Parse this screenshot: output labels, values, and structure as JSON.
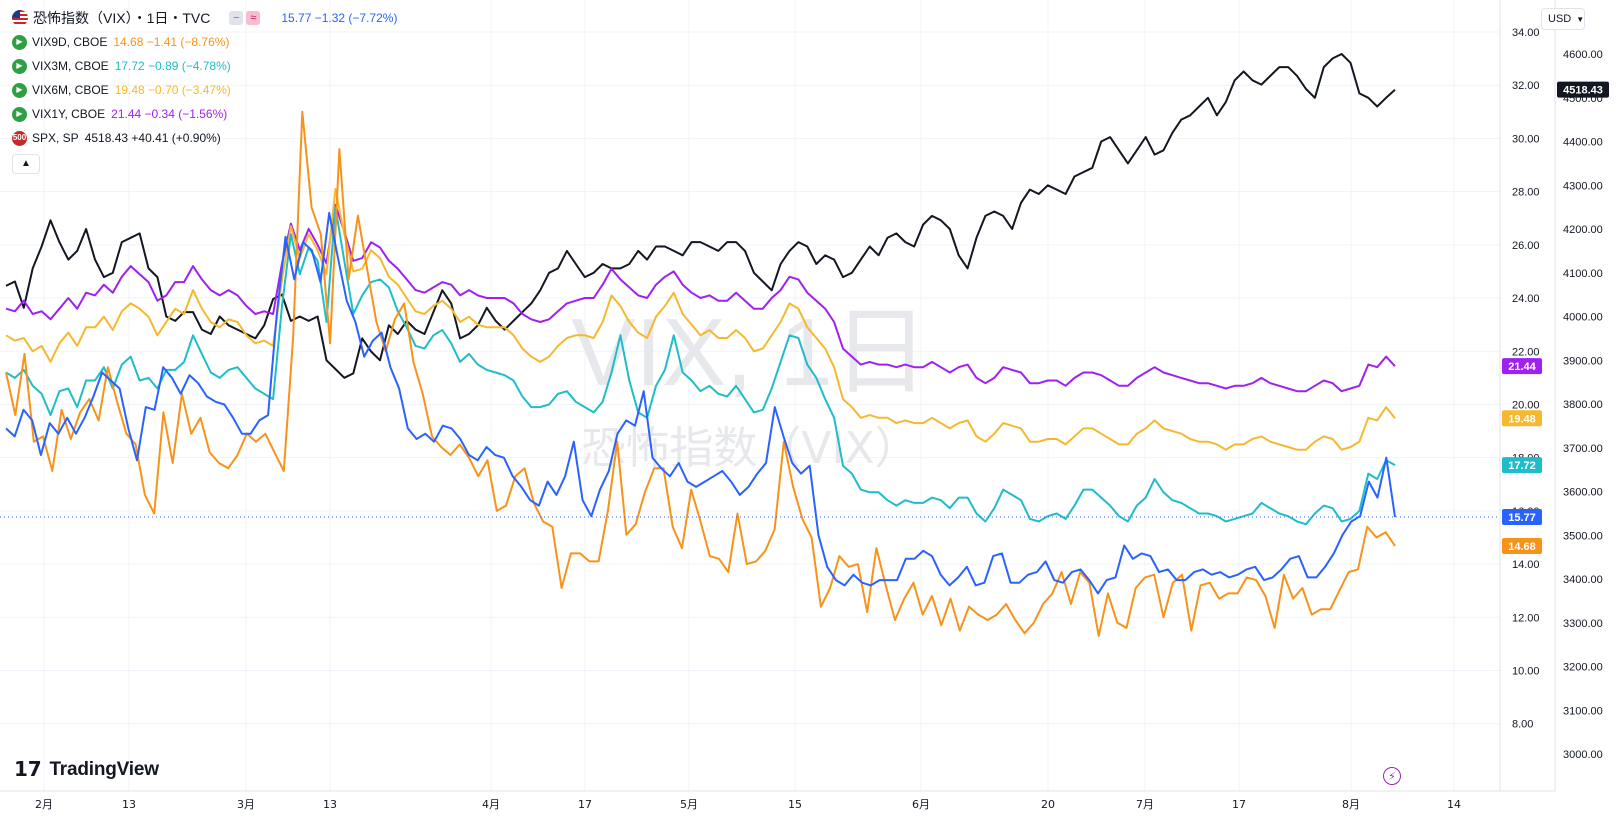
{
  "header": {
    "symbol_title": "恐怖指数（VIX）・1日・TVC",
    "vix_values": "15.77  −1.32 (−7.72%)",
    "vix_value_color": "#2962ff"
  },
  "legend": [
    {
      "name": "VIX9D, CBOE",
      "values": "14.68  −1.41 (−8.76%)",
      "color": "#f7931a",
      "icon_bg": "#2ea043",
      "icon": "play-icon"
    },
    {
      "name": "VIX3M, CBOE",
      "values": "17.72  −0.89 (−4.78%)",
      "color": "#1fbcc9",
      "icon_bg": "#2ea043",
      "icon": "play-icon"
    },
    {
      "name": "VIX6M, CBOE",
      "values": "19.48  −0.70 (−3.47%)",
      "color": "#f5b82e",
      "icon_bg": "#2ea043",
      "icon": "play-icon"
    },
    {
      "name": "VIX1Y, CBOE",
      "values": "21.44  −0.34 (−1.56%)",
      "color": "#a020f0",
      "icon_bg": "#2ea043",
      "icon": "play-icon"
    },
    {
      "name": "SPX, SP",
      "values": "4518.43  +40.41 (+0.90%)",
      "color": "#131722",
      "icon_bg": "#c62828",
      "icon_text": "500"
    }
  ],
  "currency": "USD",
  "watermark": {
    "line1": "VIX, 1日",
    "line2": "恐怖指数（VIX）"
  },
  "brand": "TradingView",
  "chart_data": {
    "type": "line",
    "x_tick_labels": [
      "2月",
      "13",
      "3月",
      "13",
      "4月",
      "17",
      "5月",
      "15",
      "6月",
      "20",
      "7月",
      "17",
      "8月",
      "14"
    ],
    "y_left": {
      "ticks": [
        "8.00",
        "10.00",
        "12.00",
        "14.00",
        "16.00",
        "18.00",
        "20.00",
        "22.00",
        "24.00",
        "26.00",
        "28.00",
        "30.00",
        "32.00",
        "34.00"
      ],
      "range": [
        6.5,
        34.5
      ]
    },
    "y_right": {
      "ticks": [
        "3000.00",
        "3100.00",
        "3200.00",
        "3300.00",
        "3400.00",
        "3500.00",
        "3600.00",
        "3700.00",
        "3800.00",
        "3900.00",
        "4000.00",
        "4100.00",
        "4200.00",
        "4300.00",
        "4400.00",
        "4500.00",
        "4600.00"
      ]
    },
    "price_labels": [
      {
        "text": "4518.43",
        "value": 4518.43,
        "axis": "right",
        "bg": "#131722"
      },
      {
        "text": "21.44",
        "value": 21.44,
        "axis": "left",
        "bg": "#a020f0"
      },
      {
        "text": "19.48",
        "value": 19.48,
        "axis": "left",
        "bg": "#f5b82e"
      },
      {
        "text": "17.72",
        "value": 17.72,
        "axis": "left",
        "bg": "#1fbcc9"
      },
      {
        "text": "15.77",
        "value": 15.77,
        "axis": "left",
        "bg": "#2962ff"
      },
      {
        "text": "14.68",
        "value": 14.68,
        "axis": "left",
        "bg": "#f7931a"
      }
    ],
    "series": [
      {
        "name": "VIX",
        "color": "#2962ff",
        "axis": "left",
        "values": [
          19.1,
          18.8,
          19.8,
          19.4,
          18.1,
          19.3,
          18.9,
          19.5,
          18.9,
          19.5,
          20.3,
          21.2,
          20.9,
          20.6,
          19.1,
          17.9,
          19.9,
          19.8,
          21.4,
          21.0,
          20.4,
          21.1,
          20.8,
          20.3,
          20.1,
          20.0,
          19.5,
          18.9,
          18.9,
          19.4,
          19.6,
          23.4,
          26.3,
          24.7,
          26.1,
          25.8,
          24.6,
          27.2,
          25.5,
          23.9,
          23.1,
          21.8,
          22.4,
          22.7,
          21.4,
          20.6,
          19.1,
          18.7,
          18.9,
          18.6,
          19.2,
          19.1,
          18.7,
          18.1,
          17.9,
          18.4,
          18.1,
          18.0,
          17.3,
          16.9,
          16.4,
          16.2,
          17.1,
          16.6,
          17.3,
          18.6,
          16.4,
          15.8,
          16.8,
          17.5,
          18.9,
          19.4,
          19.2,
          20.5,
          18.0,
          17.6,
          17.3,
          17.8,
          17.1,
          16.9,
          17.1,
          17.3,
          17.5,
          17.1,
          16.6,
          16.9,
          17.4,
          17.8,
          19.9,
          18.8,
          17.8,
          17.4,
          17.7,
          15.1,
          13.9,
          13.4,
          13.2,
          13.6,
          13.3,
          13.2,
          13.4,
          13.4,
          13.4,
          14.2,
          14.2,
          14.5,
          14.3,
          13.6,
          13.2,
          13.5,
          13.9,
          13.2,
          13.3,
          14.3,
          14.4,
          13.3,
          13.3,
          13.6,
          13.7,
          14.1,
          13.4,
          13.3,
          13.7,
          13.8,
          13.4,
          12.9,
          13.4,
          13.5,
          14.7,
          14.2,
          14.4,
          14.3,
          13.7,
          13.8,
          13.4,
          13.4,
          13.7,
          13.8,
          13.6,
          13.7,
          13.5,
          13.6,
          13.8,
          13.9,
          13.4,
          13.5,
          13.8,
          14.2,
          14.3,
          13.5,
          13.5,
          13.9,
          14.4,
          15.1,
          15.6,
          15.8,
          17.1,
          16.5,
          18.0,
          15.77
        ]
      }
    ],
    "series_compact": {
      "VIX9D": {
        "color": "#f7931a",
        "values": [
          21.2,
          19.6,
          21.9,
          18.6,
          18.8,
          17.5,
          19.8,
          18.7,
          19.7,
          20.2,
          19.4,
          21.4,
          20.1,
          18.9,
          18.5,
          16.6,
          15.9,
          19.7,
          17.8,
          20.4,
          18.9,
          19.5,
          18.2,
          17.8,
          17.6,
          18.1,
          18.9,
          18.6,
          18.9,
          18.2,
          17.5,
          22.5,
          31.0,
          27.4,
          26.4,
          22.3,
          29.6,
          24.7,
          27.1,
          25.1,
          23.1,
          22.0,
          23.2,
          23.8,
          21.6,
          20.4,
          18.8,
          18.4,
          18.1,
          18.5,
          18.0,
          17.3,
          17.9,
          16.0,
          16.2,
          17.3,
          17.6,
          16.3,
          15.6,
          15.4,
          13.1,
          14.4,
          14.4,
          14.1,
          14.1,
          16.0,
          18.6,
          15.1,
          15.5,
          16.7,
          17.6,
          17.6,
          15.4,
          14.6,
          16.8,
          15.6,
          14.3,
          14.2,
          13.7,
          15.9,
          14.0,
          14.1,
          14.5,
          15.3,
          18.6,
          16.9,
          15.7,
          15.0,
          12.4,
          13.1,
          14.3,
          13.9,
          14.0,
          12.2,
          14.6,
          13.2,
          11.9,
          12.7,
          13.3,
          12.1,
          12.8,
          11.7,
          12.7,
          11.5,
          12.4,
          12.1,
          11.9,
          12.1,
          12.5,
          11.9,
          11.4,
          11.8,
          12.5,
          12.9,
          13.7,
          12.5,
          13.7,
          13.3,
          11.3,
          12.9,
          11.8,
          11.6,
          13.1,
          13.5,
          13.6,
          12.0,
          13.3,
          13.6,
          11.5,
          13.2,
          13.3,
          12.7,
          12.9,
          12.9,
          13.5,
          13.4,
          12.8,
          11.6,
          13.6,
          12.7,
          13.1,
          12.1,
          12.3,
          12.3,
          13.0,
          13.7,
          13.8,
          15.4,
          15.0,
          15.2,
          14.68
        ]
      },
      "VIX3M": {
        "color": "#1fbcc9",
        "values": [
          21.2,
          21.0,
          21.3,
          20.7,
          20.4,
          19.6,
          20.5,
          20.6,
          19.9,
          20.9,
          20.9,
          21.4,
          20.6,
          21.5,
          21.8,
          20.9,
          21.0,
          20.6,
          21.3,
          21.3,
          21.6,
          22.6,
          21.9,
          21.2,
          21.0,
          21.3,
          21.4,
          21.0,
          20.6,
          20.4,
          20.2,
          23.7,
          26.4,
          24.9,
          25.9,
          25.4,
          23.1,
          27.4,
          25.4,
          23.4,
          24.1,
          24.6,
          24.7,
          24.4,
          23.5,
          22.9,
          22.2,
          22.1,
          22.6,
          22.8,
          22.3,
          21.6,
          21.9,
          21.5,
          21.3,
          21.2,
          21.1,
          20.9,
          20.3,
          19.9,
          19.9,
          20.0,
          20.4,
          20.5,
          20.1,
          19.9,
          19.7,
          20.1,
          21.2,
          22.6,
          20.9,
          19.7,
          19.5,
          20.7,
          21.3,
          22.6,
          21.2,
          20.9,
          20.5,
          20.7,
          20.4,
          20.3,
          20.7,
          20.2,
          19.7,
          19.8,
          20.6,
          21.6,
          22.6,
          22.5,
          21.5,
          21.0,
          20.2,
          19.5,
          17.7,
          17.4,
          16.8,
          16.7,
          16.7,
          16.4,
          16.2,
          16.4,
          16.3,
          16.3,
          16.5,
          16.4,
          16.1,
          16.5,
          16.5,
          15.9,
          15.6,
          16.1,
          16.8,
          16.6,
          16.4,
          15.7,
          15.6,
          15.8,
          15.9,
          15.7,
          16.2,
          16.8,
          16.8,
          16.5,
          16.2,
          15.8,
          15.6,
          16.2,
          16.5,
          17.2,
          16.7,
          16.4,
          16.3,
          16.1,
          15.9,
          15.9,
          15.8,
          15.6,
          15.7,
          15.8,
          15.9,
          16.3,
          16.1,
          15.9,
          15.8,
          15.6,
          15.5,
          15.9,
          16.2,
          16.1,
          15.6,
          15.7,
          16.0,
          17.4,
          17.2,
          17.9,
          17.72
        ]
      },
      "VIX6M": {
        "color": "#f5b82e",
        "values": [
          22.6,
          22.4,
          22.5,
          22.0,
          22.2,
          21.6,
          22.3,
          22.7,
          22.2,
          22.9,
          22.9,
          23.3,
          22.8,
          23.5,
          23.8,
          23.6,
          23.3,
          22.6,
          23.1,
          23.6,
          23.4,
          24.3,
          23.6,
          23.1,
          22.9,
          23.2,
          23.1,
          22.6,
          22.3,
          22.4,
          22.2,
          24.7,
          26.7,
          25.5,
          26.4,
          25.8,
          24.9,
          28.1,
          26.4,
          25.0,
          25.1,
          25.8,
          25.5,
          24.8,
          24.5,
          24.0,
          23.5,
          23.4,
          23.7,
          23.9,
          23.6,
          23.1,
          23.3,
          23.0,
          22.9,
          22.9,
          22.9,
          22.6,
          22.1,
          21.8,
          21.6,
          21.8,
          22.2,
          22.5,
          22.6,
          22.6,
          22.5,
          23.1,
          24.1,
          23.7,
          23.1,
          22.7,
          22.5,
          23.3,
          23.7,
          24.2,
          23.4,
          23.0,
          22.6,
          22.8,
          22.5,
          22.5,
          22.8,
          22.5,
          22.0,
          22.1,
          22.6,
          23.1,
          23.8,
          23.6,
          22.9,
          22.5,
          22.1,
          21.4,
          20.2,
          19.9,
          19.5,
          19.6,
          19.5,
          19.5,
          19.3,
          19.4,
          19.3,
          19.3,
          19.5,
          19.3,
          19.1,
          19.3,
          19.4,
          18.8,
          18.6,
          18.9,
          19.3,
          19.2,
          19.1,
          18.6,
          18.6,
          18.7,
          18.7,
          18.5,
          18.8,
          19.1,
          19.1,
          18.9,
          18.7,
          18.5,
          18.5,
          18.9,
          19.1,
          19.4,
          19.1,
          19.0,
          18.9,
          18.7,
          18.6,
          18.6,
          18.5,
          18.3,
          18.5,
          18.5,
          18.7,
          18.8,
          18.6,
          18.5,
          18.4,
          18.3,
          18.3,
          18.6,
          18.8,
          18.7,
          18.3,
          18.4,
          18.6,
          19.5,
          19.4,
          19.9,
          19.48
        ]
      },
      "VIX1Y": {
        "color": "#a020f0",
        "values": [
          23.6,
          23.5,
          23.9,
          23.4,
          23.5,
          23.2,
          23.6,
          24.0,
          23.6,
          24.2,
          24.1,
          24.5,
          24.2,
          24.8,
          25.2,
          24.9,
          24.6,
          23.9,
          24.1,
          24.6,
          24.6,
          25.2,
          24.7,
          24.3,
          24.1,
          24.3,
          24.1,
          23.7,
          23.4,
          23.5,
          23.4,
          25.3,
          26.8,
          25.8,
          26.6,
          26.0,
          25.3,
          27.5,
          26.5,
          25.4,
          25.5,
          26.1,
          25.9,
          25.4,
          25.1,
          24.7,
          24.3,
          24.2,
          24.4,
          24.6,
          24.5,
          24.1,
          24.3,
          24.1,
          24.0,
          24.0,
          24.0,
          23.8,
          23.4,
          23.2,
          23.1,
          23.2,
          23.5,
          23.8,
          23.9,
          24.0,
          24.0,
          24.5,
          25.1,
          24.7,
          24.4,
          24.1,
          24.0,
          24.5,
          24.8,
          25.0,
          24.5,
          24.2,
          24.0,
          24.1,
          23.9,
          23.9,
          24.2,
          23.9,
          23.6,
          23.6,
          24.0,
          24.3,
          24.8,
          24.7,
          24.2,
          23.9,
          23.6,
          23.1,
          22.1,
          21.8,
          21.5,
          21.6,
          21.5,
          21.5,
          21.4,
          21.5,
          21.4,
          21.4,
          21.6,
          21.4,
          21.2,
          21.4,
          21.5,
          21.0,
          20.8,
          21.0,
          21.4,
          21.3,
          21.2,
          20.8,
          20.8,
          20.9,
          20.9,
          20.7,
          21.0,
          21.2,
          21.2,
          21.1,
          20.9,
          20.7,
          20.7,
          21.0,
          21.2,
          21.4,
          21.2,
          21.1,
          21.0,
          20.9,
          20.8,
          20.8,
          20.7,
          20.6,
          20.7,
          20.7,
          20.8,
          21.0,
          20.8,
          20.7,
          20.6,
          20.5,
          20.5,
          20.7,
          20.9,
          20.8,
          20.5,
          20.6,
          20.7,
          21.5,
          21.4,
          21.8,
          21.44
        ]
      },
      "SPX": {
        "color": "#131722",
        "values": [
          4070,
          4080,
          4020,
          4110,
          4160,
          4220,
          4170,
          4130,
          4150,
          4200,
          4130,
          4090,
          4100,
          4170,
          4180,
          4190,
          4110,
          4090,
          4000,
          3990,
          4010,
          4010,
          3970,
          3960,
          4000,
          3980,
          3970,
          3960,
          3950,
          3980,
          4040,
          4050,
          3990,
          4000,
          3990,
          4000,
          3900,
          3880,
          3860,
          3870,
          3950,
          3920,
          3900,
          3980,
          3960,
          3990,
          3970,
          3960,
          4010,
          4060,
          4030,
          3950,
          3960,
          3980,
          4020,
          3990,
          3970,
          3990,
          4010,
          4030,
          4060,
          4100,
          4110,
          4150,
          4120,
          4090,
          4100,
          4120,
          4110,
          4110,
          4120,
          4150,
          4130,
          4160,
          4160,
          4150,
          4140,
          4170,
          4170,
          4160,
          4150,
          4170,
          4170,
          4150,
          4100,
          4080,
          4060,
          4120,
          4150,
          4170,
          4160,
          4120,
          4140,
          4130,
          4090,
          4100,
          4130,
          4160,
          4140,
          4180,
          4190,
          4170,
          4160,
          4210,
          4230,
          4220,
          4200,
          4140,
          4110,
          4180,
          4230,
          4240,
          4230,
          4200,
          4260,
          4290,
          4280,
          4300,
          4290,
          4280,
          4320,
          4330,
          4340,
          4400,
          4410,
          4380,
          4350,
          4380,
          4410,
          4370,
          4380,
          4420,
          4450,
          4460,
          4480,
          4500,
          4460,
          4490,
          4540,
          4560,
          4540,
          4530,
          4550,
          4570,
          4570,
          4550,
          4520,
          4500,
          4570,
          4590,
          4600,
          4580,
          4510,
          4500,
          4480,
          4500,
          4518.43
        ]
      }
    }
  }
}
